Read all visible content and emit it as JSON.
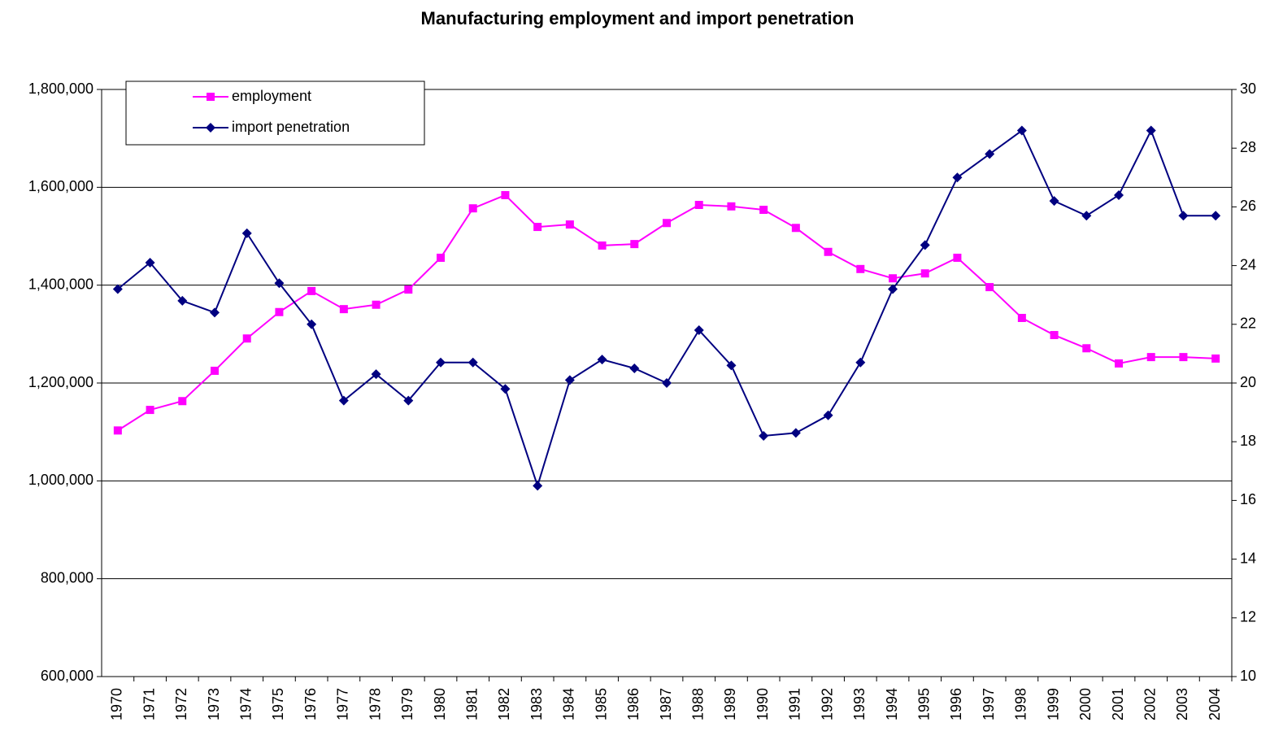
{
  "chart_data": {
    "type": "line",
    "title": "Manufacturing employment and import penetration",
    "categories": [
      "1970",
      "1971",
      "1972",
      "1973",
      "1974",
      "1975",
      "1976",
      "1977",
      "1978",
      "1979",
      "1980",
      "1981",
      "1982",
      "1983",
      "1984",
      "1985",
      "1986",
      "1987",
      "1988",
      "1989",
      "1990",
      "1991",
      "1992",
      "1993",
      "1994",
      "1995",
      "1996",
      "1997",
      "1998",
      "1999",
      "2000",
      "2001",
      "2002",
      "2003",
      "2004"
    ],
    "series": [
      {
        "name": "employment",
        "color": "#ff00ff",
        "marker": "square",
        "values": [
          1103000,
          1145000,
          1163000,
          1225000,
          1291000,
          1345000,
          1388000,
          1351000,
          1360000,
          1391000,
          1456000,
          1557000,
          1584000,
          1519000,
          1524000,
          1481000,
          1484000,
          1527000,
          1564000,
          1561000,
          1554000,
          1517000,
          1468000,
          1433000,
          1414000,
          1424000,
          1456000,
          1396000,
          1333000,
          1298000,
          1271000,
          1240000,
          1253000,
          1253000,
          1250000
        ]
      },
      {
        "name": "import penetration",
        "color": "#000080",
        "marker": "diamond",
        "axis": "y2",
        "values": [
          23.2,
          24.1,
          22.8,
          22.4,
          25.1,
          23.4,
          22.0,
          19.4,
          20.3,
          19.4,
          20.7,
          20.7,
          19.8,
          16.5,
          20.1,
          20.8,
          20.5,
          20.0,
          21.8,
          20.6,
          18.2,
          18.3,
          18.9,
          20.7,
          23.2,
          24.7,
          27.0,
          27.8,
          28.6,
          26.2,
          25.7,
          26.4,
          28.6,
          25.7,
          25.7
        ]
      }
    ],
    "ylim": [
      600000,
      1800000
    ],
    "yticks": [
      {
        "value": 600000,
        "label": "600,000"
      },
      {
        "value": 800000,
        "label": "800,000"
      },
      {
        "value": 1000000,
        "label": "1,000,000"
      },
      {
        "value": 1200000,
        "label": "1,200,000"
      },
      {
        "value": 1400000,
        "label": "1,400,000"
      },
      {
        "value": 1600000,
        "label": "1,600,000"
      },
      {
        "value": 1800000,
        "label": "1,800,000"
      }
    ],
    "y2lim": [
      10,
      30
    ],
    "y2ticks": [
      10,
      12,
      14,
      16,
      18,
      20,
      22,
      24,
      26,
      28,
      30
    ],
    "grid": true,
    "legend": "upper left"
  }
}
